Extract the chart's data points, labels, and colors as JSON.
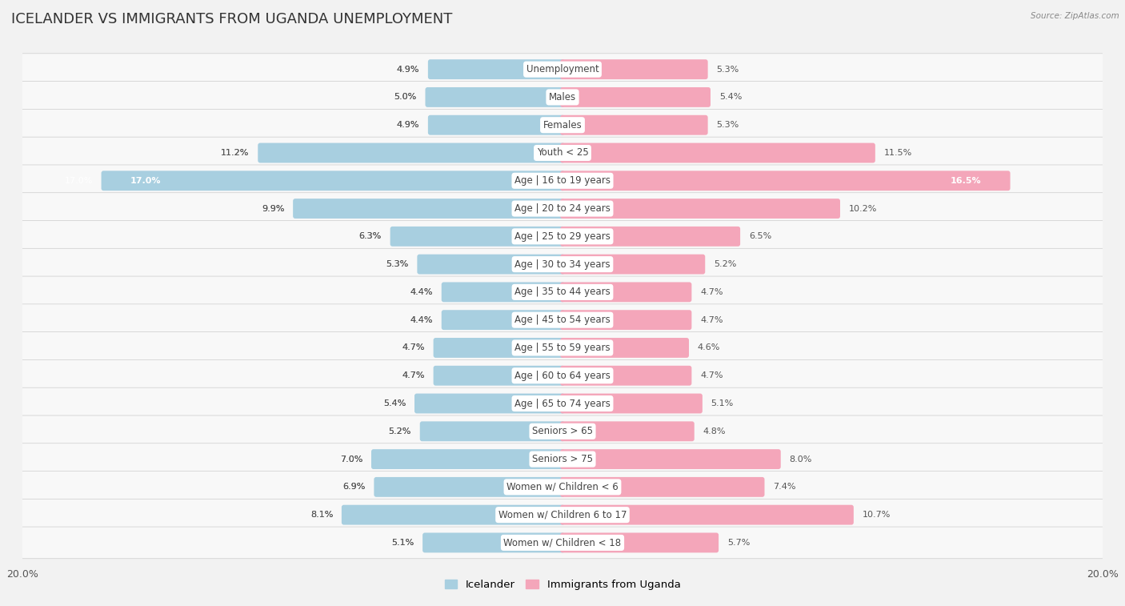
{
  "title": "ICELANDER VS IMMIGRANTS FROM UGANDA UNEMPLOYMENT",
  "source": "Source: ZipAtlas.com",
  "categories": [
    "Unemployment",
    "Males",
    "Females",
    "Youth < 25",
    "Age | 16 to 19 years",
    "Age | 20 to 24 years",
    "Age | 25 to 29 years",
    "Age | 30 to 34 years",
    "Age | 35 to 44 years",
    "Age | 45 to 54 years",
    "Age | 55 to 59 years",
    "Age | 60 to 64 years",
    "Age | 65 to 74 years",
    "Seniors > 65",
    "Seniors > 75",
    "Women w/ Children < 6",
    "Women w/ Children 6 to 17",
    "Women w/ Children < 18"
  ],
  "icelander": [
    4.9,
    5.0,
    4.9,
    11.2,
    17.0,
    9.9,
    6.3,
    5.3,
    4.4,
    4.4,
    4.7,
    4.7,
    5.4,
    5.2,
    7.0,
    6.9,
    8.1,
    5.1
  ],
  "uganda": [
    5.3,
    5.4,
    5.3,
    11.5,
    16.5,
    10.2,
    6.5,
    5.2,
    4.7,
    4.7,
    4.6,
    4.7,
    5.1,
    4.8,
    8.0,
    7.4,
    10.7,
    5.7
  ],
  "icelander_color": "#a8cfe0",
  "uganda_color": "#f4a6ba",
  "icelander_label": "Icelander",
  "uganda_label": "Immigrants from Uganda",
  "axis_limit": 20.0,
  "background_color": "#f2f2f2",
  "row_light_color": "#ebebeb",
  "row_dark_color": "#e0e0e0",
  "bar_bg_color": "#ffffff",
  "title_fontsize": 13,
  "label_fontsize": 8.5,
  "value_fontsize": 8,
  "legend_fontsize": 9.5,
  "tick_fontsize": 9
}
